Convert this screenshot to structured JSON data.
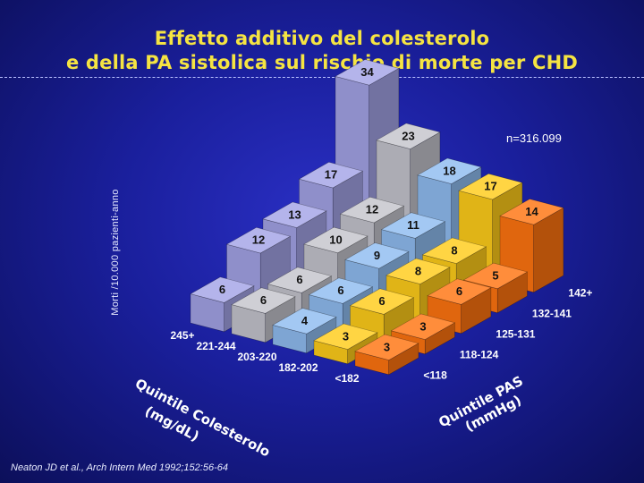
{
  "title_line1": "Effetto additivo del colesterolo",
  "title_line2": "e della PA sistolica sul rischio di morte per CHD",
  "y_axis_label": "Morti /10.000 pazienti-anno",
  "sample_note": "n=316.099",
  "citation": "Neaton JD et al., Arch Intern Med 1992;152:56-64",
  "colors": {
    "cholesterol_q5": "#a3a3e6",
    "cholesterol_q4": "#c4c4cc",
    "cholesterol_q3": "#8fbcf0",
    "cholesterol_q2": "#ffcc1a",
    "cholesterol_q1": "#ff7410",
    "background": "#1a1f9c",
    "title": "#f5e442"
  },
  "chart_data": {
    "type": "bar3d",
    "title": "Effetto additivo del colesterolo e della PA sistolica sul rischio di morte per CHD",
    "zlabel": "Morti /10.000 pazienti-anno",
    "cholesterol_axis": {
      "title": [
        "Quintile Colesterolo",
        "(mg/dL)"
      ],
      "categories": [
        "245+",
        "221-244",
        "203-220",
        "182-202",
        "<182"
      ]
    },
    "sbp_axis": {
      "title": [
        "Quintile PAS",
        "(mmHg)"
      ],
      "categories": [
        "<118",
        "118-124",
        "125-131",
        "132-141",
        "142+"
      ]
    },
    "series": [
      {
        "name": "245+",
        "values": [
          6,
          12,
          13,
          17,
          34
        ]
      },
      {
        "name": "221-244",
        "values": [
          6,
          6,
          10,
          12,
          23
        ]
      },
      {
        "name": "203-220",
        "values": [
          4,
          6,
          9,
          11,
          18
        ]
      },
      {
        "name": "182-202",
        "values": [
          3,
          6,
          8,
          8,
          17
        ]
      },
      {
        "name": "<182",
        "values": [
          3,
          3,
          6,
          5,
          14
        ]
      }
    ]
  }
}
